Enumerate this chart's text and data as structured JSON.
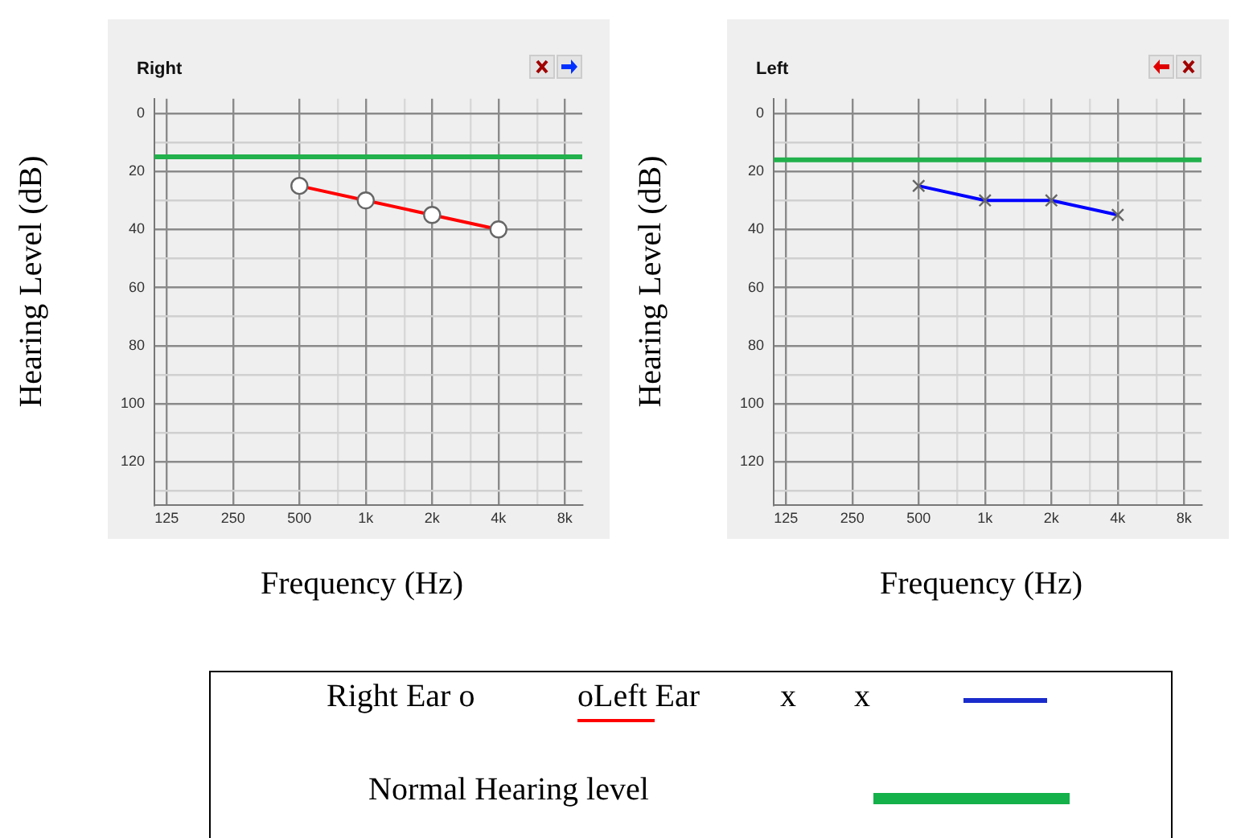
{
  "chart_data": [
    {
      "type": "line",
      "title": "Right",
      "xlabel": "Frequency (Hz)",
      "ylabel": "Hearing Level (dB)",
      "log": "x",
      "grid": true,
      "legend": false,
      "marker": "circle",
      "line_style": "solid",
      "x": [
        500,
        1000,
        2000,
        4000
      ],
      "series": [
        {
          "color": "#ff0000",
          "values": [
            25,
            30,
            35,
            40
          ]
        }
      ],
      "xlim": [
        110,
        9600
      ],
      "xticks": [
        {
          "value": 125,
          "label": "125"
        },
        {
          "value": 250,
          "label": "250"
        },
        {
          "value": 500,
          "label": "500"
        },
        {
          "value": 750,
          "label": null
        },
        {
          "value": 1000,
          "label": "1k"
        },
        {
          "value": 1500,
          "label": null
        },
        {
          "value": 2000,
          "label": "2k"
        },
        {
          "value": 3000,
          "label": null
        },
        {
          "value": 4000,
          "label": "4k"
        },
        {
          "value": 6000,
          "label": null
        },
        {
          "value": 8000,
          "label": "8k"
        }
      ],
      "ylim": [
        135,
        -5
      ],
      "yticks": [
        0,
        {
          "value": 10,
          "label": null
        },
        20,
        {
          "value": 30,
          "label": null
        },
        40,
        {
          "value": 50,
          "label": null
        },
        60,
        {
          "value": 70,
          "label": null
        },
        80,
        {
          "value": 90,
          "label": null
        },
        100,
        {
          "value": 110,
          "label": null
        },
        120,
        {
          "value": 130,
          "label": null
        }
      ],
      "ref_lines": [
        {
          "axis": "y",
          "value": 15,
          "color": "#22b14c"
        }
      ]
    },
    {
      "type": "line",
      "title": "Left",
      "xlabel": "Frequency (Hz)",
      "ylabel": "Hearing Level (dB)",
      "log": "x",
      "grid": true,
      "legend": false,
      "marker": "cross",
      "line_style": "solid",
      "x": [
        500,
        1000,
        2000,
        4000
      ],
      "series": [
        {
          "color": "#0000ff",
          "values": [
            25,
            30,
            30,
            35
          ]
        }
      ],
      "xlim": [
        110,
        9600
      ],
      "xticks": [
        {
          "value": 125,
          "label": "125"
        },
        {
          "value": 250,
          "label": "250"
        },
        {
          "value": 500,
          "label": "500"
        },
        {
          "value": 750,
          "label": null
        },
        {
          "value": 1000,
          "label": "1k"
        },
        {
          "value": 1500,
          "label": null
        },
        {
          "value": 2000,
          "label": "2k"
        },
        {
          "value": 3000,
          "label": null
        },
        {
          "value": 4000,
          "label": "4k"
        },
        {
          "value": 6000,
          "label": null
        },
        {
          "value": 8000,
          "label": "8k"
        }
      ],
      "ylim": [
        135,
        -5
      ],
      "yticks": [
        0,
        {
          "value": 10,
          "label": null
        },
        20,
        {
          "value": 30,
          "label": null
        },
        40,
        {
          "value": 50,
          "label": null
        },
        60,
        {
          "value": 70,
          "label": null
        },
        80,
        {
          "value": 90,
          "label": null
        },
        100,
        {
          "value": 110,
          "label": null
        },
        120,
        {
          "value": 130,
          "label": null
        }
      ],
      "ref_lines": [
        {
          "axis": "y",
          "value": 16,
          "color": "#22b14c"
        }
      ]
    },
    {
      "type": "other",
      "annotations": [
        "Right Ear o",
        "oLeft Ear",
        "x",
        "x",
        "Normal Hearing level"
      ]
    }
  ]
}
